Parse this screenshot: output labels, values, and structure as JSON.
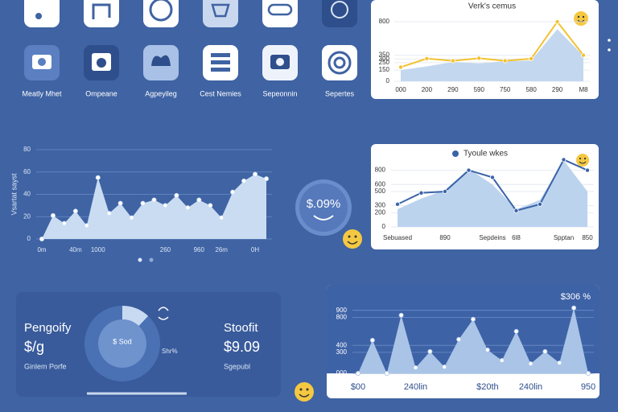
{
  "icons": {
    "labels": [
      "Meatly Mhet",
      "Ompeane",
      "Agpeyileg",
      "Cest Nemies",
      "Sepeonnin",
      "Sepertes"
    ]
  },
  "badge": "$.09%",
  "card": {
    "title": "Pengoify",
    "value": "$/g",
    "caption": "Ginlem Porfe",
    "side_label": "Shr%",
    "right_title": "Stoofit",
    "right_value": "$9.09",
    "right_caption": "Sgepubl"
  },
  "chart_data": [
    {
      "type": "line",
      "title": "Verk's cemus",
      "categories": [
        "000",
        "200",
        "290",
        "590",
        "750",
        "580",
        "290",
        "M8"
      ],
      "series": [
        {
          "style": "area",
          "color": "#c3d7ef",
          "values": [
            150,
            200,
            260,
            240,
            270,
            280,
            700,
            340
          ]
        },
        {
          "style": "line",
          "color": "#f2c230",
          "markers": true,
          "values": [
            190,
            305,
            275,
            310,
            275,
            303,
            800,
            350
          ]
        }
      ],
      "ylim": [
        0,
        800
      ],
      "yticks": [
        0,
        150,
        250,
        300,
        350,
        800
      ],
      "grid": true
    },
    {
      "type": "line",
      "y_label": "Vsartat sayst",
      "categories": [
        "0m",
        null,
        null,
        "40m",
        null,
        "1000",
        null,
        null,
        null,
        null,
        null,
        "260",
        null,
        null,
        "960",
        null,
        "26m",
        null,
        null,
        "0H",
        null
      ],
      "series": [
        {
          "style": "area",
          "color": "#c9dcf2",
          "markers": true,
          "values": [
            0,
            21,
            14,
            25,
            12,
            55,
            23,
            32,
            19,
            32,
            35,
            30,
            39,
            28,
            35,
            30,
            19,
            42,
            52,
            58,
            54
          ]
        }
      ],
      "ylim": [
        0,
        80
      ],
      "yticks": [
        0,
        20,
        40,
        60,
        80
      ],
      "grid": true
    },
    {
      "type": "line",
      "categories": [
        "Sebuased",
        null,
        "890",
        null,
        "Sepdeins",
        "6l8",
        null,
        "Spptan",
        "850"
      ],
      "series": [
        {
          "style": "area",
          "color": "#bcd3ee",
          "values": [
            250,
            400,
            520,
            820,
            600,
            250,
            380,
            940,
            500
          ]
        },
        {
          "style": "line",
          "name": "Tyoule wkes",
          "color": "#3a64a8",
          "markers": true,
          "values": [
            320,
            480,
            500,
            800,
            700,
            230,
            320,
            950,
            800
          ]
        }
      ],
      "ylim": [
        0,
        1000
      ],
      "yticks": [
        0,
        200,
        300,
        500,
        600,
        800
      ],
      "grid": true
    },
    {
      "type": "line",
      "annotation": "$306 %",
      "categories": [
        "$00",
        null,
        null,
        null,
        "240lin",
        null,
        null,
        null,
        null,
        "$20th",
        null,
        null,
        "240lin",
        null,
        null,
        null,
        "950"
      ],
      "series": [
        {
          "style": "area",
          "color": "#a9c4e6",
          "markers": true,
          "values": [
            0,
            473,
            0,
            831,
            81,
            312,
            92,
            485,
            773,
            335,
            185,
            600,
            138,
            312,
            150,
            935,
            0
          ]
        }
      ],
      "ylim": [
        0,
        1000
      ],
      "yticks": [
        {
          "value": 0,
          "label": "000"
        },
        300,
        400,
        800,
        900
      ],
      "grid": true
    },
    {
      "type": "pie",
      "center_label": "$ Sod",
      "values": [
        12,
        88
      ],
      "colors": [
        "#c8daf2",
        "#4a71b3"
      ]
    }
  ]
}
